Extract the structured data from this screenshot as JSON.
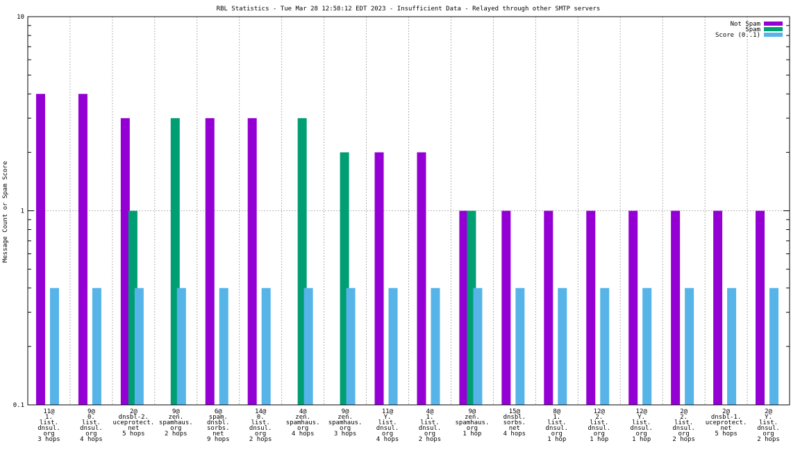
{
  "chart_data": {
    "type": "bar",
    "title": "RBL Statistics - Tue Mar 28 12:58:12 EDT 2023 - Insufficient Data - Relayed through other SMTP servers",
    "ylabel": "Message Count or Spam Score",
    "xlabel": "",
    "yscale": "log",
    "ylim": [
      0.1,
      10
    ],
    "yticks": [
      "0.1",
      "1",
      "10"
    ],
    "grid": true,
    "legend_position": "top-right",
    "categories": [
      [
        "11@",
        "1.",
        "list.",
        "dnsul.",
        "org",
        "3 hops"
      ],
      [
        "9@",
        "0.",
        "list.",
        "dnsul.",
        "org",
        "4 hops"
      ],
      [
        "2@",
        "dnsbl-2.",
        "uceprotect.",
        "net",
        "5 hops"
      ],
      [
        "9@",
        "zen.",
        "spamhaus.",
        "org",
        "2 hops"
      ],
      [
        "6@",
        "spam.",
        "dnsbl.",
        "sorbs.",
        "net",
        "9 hops"
      ],
      [
        "14@",
        "0.",
        "list.",
        "dnsul.",
        "org",
        "2 hops"
      ],
      [
        "4@",
        "zen.",
        "spamhaus.",
        "org",
        "4 hops"
      ],
      [
        "9@",
        "zen.",
        "spamhaus.",
        "org",
        "3 hops"
      ],
      [
        "11@",
        "Y.",
        "list.",
        "dnsul.",
        "org",
        "4 hops"
      ],
      [
        "4@",
        "1.",
        "list.",
        "dnsul.",
        "org",
        "2 hops"
      ],
      [
        "9@",
        "zen.",
        "spamhaus.",
        "org",
        "1 hop"
      ],
      [
        "15@",
        "dnsbl.",
        "sorbs.",
        "net",
        "4 hops"
      ],
      [
        "8@",
        "1.",
        "list.",
        "dnsul.",
        "org",
        "1 hop"
      ],
      [
        "12@",
        "2.",
        "list.",
        "dnsul.",
        "org",
        "1 hop"
      ],
      [
        "12@",
        "Y.",
        "list.",
        "dnsul.",
        "org",
        "1 hop"
      ],
      [
        "2@",
        "2.",
        "list.",
        "dnsul.",
        "org",
        "2 hops"
      ],
      [
        "2@",
        "dnsbl-1.",
        "uceprotect.",
        "net",
        "5 hops"
      ],
      [
        "2@",
        "Y.",
        "list.",
        "dnsul.",
        "org",
        "2 hops"
      ]
    ],
    "series": [
      {
        "name": "Not Spam",
        "color": "#9400d3",
        "values": [
          4,
          4,
          3,
          0,
          3,
          3,
          0,
          0,
          2,
          2,
          1,
          1,
          1,
          1,
          1,
          1,
          1,
          1
        ]
      },
      {
        "name": "Spam",
        "color": "#009e73",
        "values": [
          0,
          0,
          1,
          3,
          0,
          0,
          3,
          2,
          0,
          0,
          1,
          0,
          0,
          0,
          0,
          0,
          0,
          0
        ]
      },
      {
        "name": "Score (0..1)",
        "color": "#56b4e9",
        "values": [
          0.4,
          0.4,
          0.4,
          0.4,
          0.4,
          0.4,
          0.4,
          0.4,
          0.4,
          0.4,
          0.4,
          0.4,
          0.4,
          0.4,
          0.4,
          0.4,
          0.4,
          0.4
        ]
      }
    ]
  }
}
